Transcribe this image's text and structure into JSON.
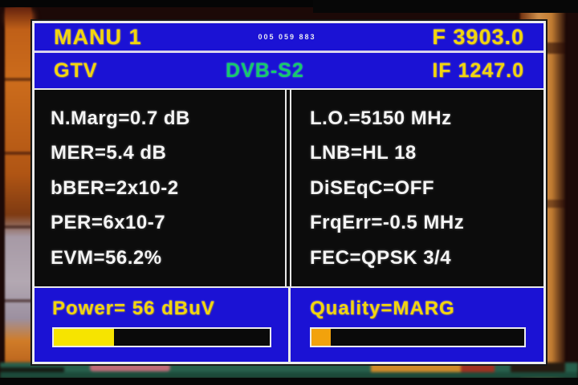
{
  "header": {
    "preset": "MANU 1",
    "center_code": "005 059 883",
    "frequency": "F 3903.0"
  },
  "subheader": {
    "channel": "GTV",
    "standard": "DVB-S2",
    "if_frequency": "IF 1247.0"
  },
  "readings": {
    "left": [
      "N.Marg=0.7 dB",
      "MER=5.4 dB",
      "bBER=2x10-2",
      "PER=6x10-7",
      "EVM=56.2%"
    ],
    "right": [
      "L.O.=5150 MHz",
      "LNB=HL 18",
      "DiSEqC=OFF",
      "FrqErr=-0.5 MHz",
      "FEC=QPSK 3/4"
    ]
  },
  "power": {
    "text": "Power= 56 dBuV",
    "percent": 28
  },
  "quality": {
    "text": "Quality=MARG",
    "percent": 9
  },
  "colors": {
    "panel_blue": "#1b12d4",
    "panel_border": "#ececec",
    "readout_black": "#0c0c0c",
    "text_yellow": "#f2d50e",
    "text_white": "#f4f4f4",
    "standard_green": "#17c96b",
    "power_fill": "#f6e400",
    "quality_fill": "#f2a20c"
  }
}
